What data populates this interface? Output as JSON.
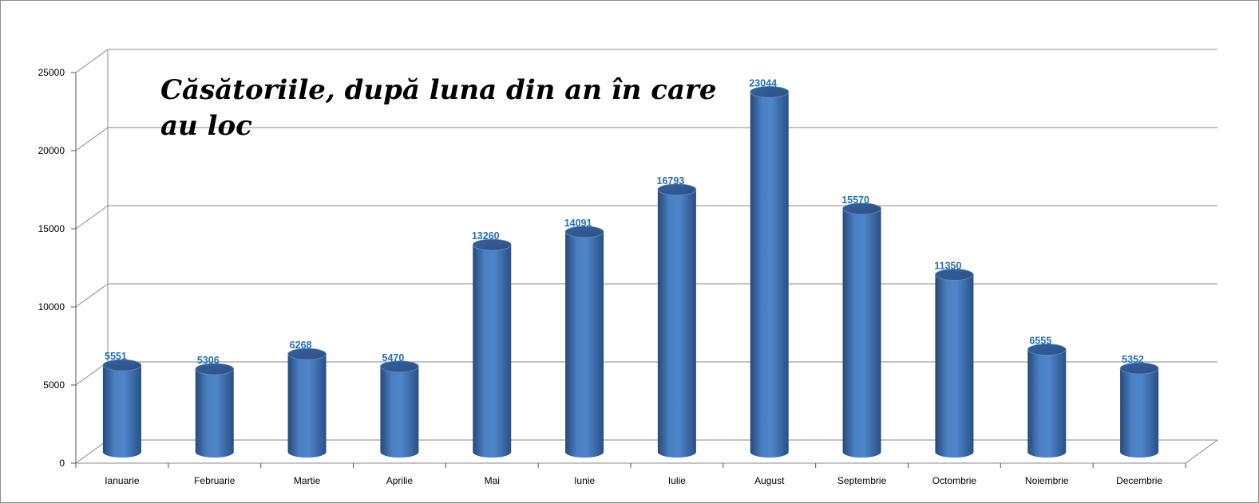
{
  "chart_data": {
    "type": "bar",
    "title_lines": [
      "Căsătoriile, după luna din an în care",
      "au loc"
    ],
    "categories": [
      "Ianuarie",
      "Februarie",
      "Martie",
      "Aprilie",
      "Mai",
      "Iunie",
      "Iulie",
      "August",
      "Septembrie",
      "Octombrie",
      "Noiembrie",
      "Decembrie"
    ],
    "values": [
      5551,
      5306,
      6268,
      5470,
      13260,
      14091,
      16793,
      23044,
      15570,
      11350,
      6555,
      5352
    ],
    "data_labels": [
      "5551",
      "5306",
      "6268",
      "5470",
      "13260",
      "14091",
      "16793",
      "23044",
      "15570",
      "11350",
      "6555",
      "5352"
    ],
    "y_ticks": [
      "0",
      "5000",
      "10000",
      "15000",
      "20000",
      "25000"
    ],
    "ylim": [
      0,
      25000
    ],
    "grid": true,
    "legend": "none",
    "bar_color": "#4a7fc1",
    "label_color": "#1f6fc0"
  }
}
